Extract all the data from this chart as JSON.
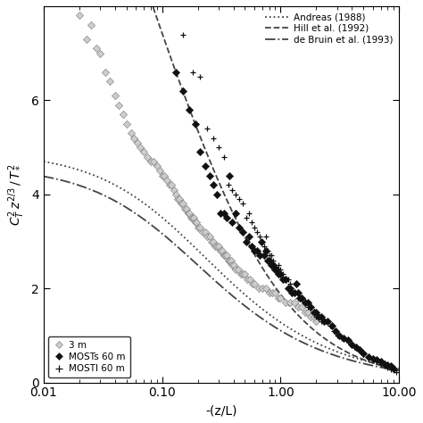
{
  "xlabel": "-(z/L)",
  "ylabel": "$C_T^2\\, z^{2/3}\\, /\\, T_*^2$",
  "xlim_log": [
    -2,
    1
  ],
  "ylim": [
    0,
    8
  ],
  "yticks": [
    0,
    2,
    4,
    6
  ],
  "curve_andreas": {
    "A": 4.9,
    "B": 6.5,
    "n": 0.667,
    "linestyle": "dotted",
    "color": "#444444",
    "lw": 1.3
  },
  "curve_hill": {
    "A": 5.1,
    "alpha": 0.25,
    "B": 3.5,
    "linestyle": "dashed",
    "color": "#444444",
    "lw": 1.3
  },
  "curve_debruin": {
    "A": 4.6,
    "B": 7.5,
    "n": 0.667,
    "linestyle": "dashdot",
    "color": "#444444",
    "lw": 1.3
  },
  "scatter_3m": {
    "color_face": "#cccccc",
    "color_edge": "#777777",
    "ms": 18,
    "lw": 0.4,
    "x": [
      0.02,
      0.023,
      0.025,
      0.028,
      0.03,
      0.033,
      0.036,
      0.04,
      0.043,
      0.047,
      0.05,
      0.055,
      0.058,
      0.062,
      0.065,
      0.07,
      0.075,
      0.08,
      0.085,
      0.09,
      0.095,
      0.1,
      0.105,
      0.11,
      0.115,
      0.12,
      0.125,
      0.13,
      0.135,
      0.14,
      0.145,
      0.15,
      0.155,
      0.16,
      0.165,
      0.17,
      0.175,
      0.18,
      0.185,
      0.19,
      0.195,
      0.2,
      0.21,
      0.22,
      0.23,
      0.24,
      0.25,
      0.26,
      0.27,
      0.28,
      0.29,
      0.3,
      0.31,
      0.32,
      0.33,
      0.34,
      0.35,
      0.36,
      0.37,
      0.38,
      0.39,
      0.4,
      0.42,
      0.44,
      0.46,
      0.48,
      0.5,
      0.52,
      0.55,
      0.58,
      0.6,
      0.65,
      0.7,
      0.75,
      0.8,
      0.85,
      0.9,
      0.95,
      1.0,
      1.1,
      1.2,
      1.3,
      1.4,
      1.5,
      1.6,
      1.7,
      1.8,
      1.9,
      2.0
    ],
    "y": [
      7.8,
      7.3,
      7.6,
      7.1,
      7.0,
      6.6,
      6.4,
      6.1,
      5.9,
      5.7,
      5.5,
      5.3,
      5.2,
      5.1,
      5.0,
      4.9,
      4.8,
      4.7,
      4.7,
      4.6,
      4.5,
      4.4,
      4.4,
      4.3,
      4.2,
      4.2,
      4.1,
      4.0,
      3.9,
      3.9,
      3.8,
      3.8,
      3.7,
      3.7,
      3.6,
      3.6,
      3.5,
      3.5,
      3.5,
      3.4,
      3.4,
      3.3,
      3.3,
      3.2,
      3.2,
      3.1,
      3.1,
      3.0,
      3.0,
      2.9,
      2.9,
      2.9,
      2.8,
      2.8,
      2.7,
      2.7,
      2.7,
      2.6,
      2.6,
      2.6,
      2.5,
      2.5,
      2.4,
      2.4,
      2.3,
      2.3,
      2.3,
      2.2,
      2.2,
      2.1,
      2.1,
      2.0,
      2.0,
      2.0,
      1.9,
      1.9,
      1.9,
      1.8,
      1.8,
      1.7,
      1.7,
      1.7,
      1.6,
      1.6,
      1.5,
      1.5,
      1.4,
      1.4,
      1.3
    ]
  },
  "scatter_mosts": {
    "color_face": "#111111",
    "color_edge": "#111111",
    "ms": 18,
    "lw": 0.4,
    "x": [
      0.13,
      0.15,
      0.17,
      0.19,
      0.21,
      0.23,
      0.25,
      0.27,
      0.29,
      0.31,
      0.33,
      0.35,
      0.37,
      0.39,
      0.42,
      0.45,
      0.48,
      0.51,
      0.54,
      0.57,
      0.6,
      0.63,
      0.66,
      0.69,
      0.72,
      0.75,
      0.78,
      0.81,
      0.84,
      0.87,
      0.9,
      0.93,
      0.96,
      1.0,
      1.05,
      1.1,
      1.15,
      1.2,
      1.25,
      1.3,
      1.35,
      1.4,
      1.45,
      1.5,
      1.6,
      1.7,
      1.8,
      1.9,
      2.0,
      2.1,
      2.2,
      2.3,
      2.5,
      2.7,
      2.9,
      3.1,
      3.4,
      3.7,
      4.0,
      4.3,
      4.6,
      5.0,
      5.5,
      6.0,
      6.5,
      7.0,
      7.5,
      8.0,
      8.5,
      9.0
    ],
    "y": [
      6.6,
      6.2,
      5.8,
      5.5,
      4.9,
      4.6,
      4.4,
      4.2,
      4.0,
      3.6,
      3.6,
      3.5,
      4.4,
      3.4,
      3.6,
      3.3,
      3.2,
      3.0,
      3.1,
      2.9,
      2.8,
      2.8,
      2.7,
      3.0,
      2.7,
      2.8,
      2.6,
      2.6,
      2.5,
      2.5,
      2.4,
      2.4,
      2.3,
      2.3,
      2.2,
      2.2,
      2.0,
      2.0,
      1.9,
      1.9,
      2.1,
      1.9,
      1.8,
      1.8,
      1.7,
      1.7,
      1.6,
      1.5,
      1.5,
      1.4,
      1.4,
      1.3,
      1.3,
      1.2,
      1.1,
      1.0,
      0.95,
      0.9,
      0.8,
      0.75,
      0.7,
      0.62,
      0.55,
      0.5,
      0.48,
      0.44,
      0.4,
      0.38,
      0.35,
      0.3
    ]
  },
  "scatter_mosti": {
    "color": "#111111",
    "ms": 25,
    "lw": 0.9,
    "x": [
      0.15,
      0.18,
      0.21,
      0.24,
      0.27,
      0.3,
      0.33,
      0.36,
      0.39,
      0.42,
      0.45,
      0.48,
      0.51,
      0.54,
      0.57,
      0.6,
      0.63,
      0.66,
      0.69,
      0.72,
      0.75,
      0.78,
      0.81,
      0.84,
      0.87,
      0.9,
      0.95,
      1.0,
      1.05,
      1.1,
      1.15,
      1.2,
      1.3,
      1.4,
      1.5,
      1.6,
      1.7,
      1.8,
      1.9,
      2.0,
      2.2,
      2.4,
      2.6,
      2.8,
      3.0,
      3.3,
      3.6,
      3.9,
      4.2,
      4.6,
      5.0,
      5.5,
      6.0,
      6.5,
      7.0,
      7.5,
      8.0,
      8.5,
      9.0,
      9.5
    ],
    "y": [
      7.4,
      6.6,
      6.5,
      5.4,
      5.2,
      5.0,
      4.8,
      4.2,
      4.1,
      4.0,
      3.9,
      3.8,
      3.5,
      3.6,
      3.4,
      3.3,
      3.2,
      3.1,
      3.0,
      2.9,
      3.1,
      2.8,
      2.7,
      2.7,
      2.6,
      2.5,
      2.5,
      2.4,
      2.3,
      2.2,
      2.2,
      2.1,
      1.9,
      1.8,
      1.8,
      1.7,
      1.6,
      1.6,
      1.5,
      1.4,
      1.3,
      1.3,
      1.2,
      1.1,
      1.0,
      0.95,
      0.9,
      0.82,
      0.75,
      0.68,
      0.6,
      0.55,
      0.5,
      0.44,
      0.4,
      0.36,
      0.32,
      0.28,
      0.25,
      0.22
    ]
  },
  "legend1_labels": [
    "Andreas (1988)",
    "Hill et al. (1992)",
    "de Bruin et al. (1993)"
  ],
  "legend2_labels": [
    "3 m",
    "MOSTs 60 m",
    "MOSTI 60 m"
  ],
  "background": "#ffffff"
}
